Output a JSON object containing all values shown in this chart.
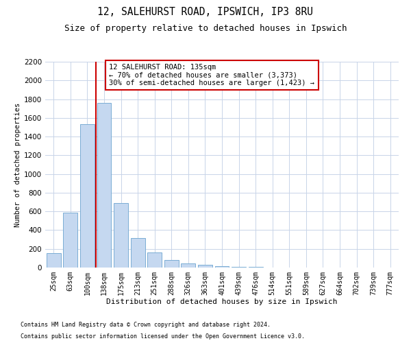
{
  "title1": "12, SALEHURST ROAD, IPSWICH, IP3 8RU",
  "title2": "Size of property relative to detached houses in Ipswich",
  "xlabel": "Distribution of detached houses by size in Ipswich",
  "ylabel": "Number of detached properties",
  "categories": [
    "25sqm",
    "63sqm",
    "100sqm",
    "138sqm",
    "175sqm",
    "213sqm",
    "251sqm",
    "288sqm",
    "326sqm",
    "363sqm",
    "401sqm",
    "439sqm",
    "476sqm",
    "514sqm",
    "551sqm",
    "589sqm",
    "627sqm",
    "664sqm",
    "702sqm",
    "739sqm",
    "777sqm"
  ],
  "values": [
    155,
    590,
    1530,
    1760,
    690,
    315,
    160,
    80,
    45,
    28,
    18,
    10,
    8,
    2,
    1,
    0,
    0,
    0,
    0,
    0,
    0
  ],
  "bar_color": "#c5d8f0",
  "bar_edge_color": "#7aadd4",
  "vline_color": "#cc0000",
  "annotation_text": "12 SALEHURST ROAD: 135sqm\n← 70% of detached houses are smaller (3,373)\n30% of semi-detached houses are larger (1,423) →",
  "annotation_box_color": "#ffffff",
  "annotation_box_edge": "#cc0000",
  "ylim_max": 2200,
  "yticks": [
    0,
    200,
    400,
    600,
    800,
    1000,
    1200,
    1400,
    1600,
    1800,
    2000,
    2200
  ],
  "footer1": "Contains HM Land Registry data © Crown copyright and database right 2024.",
  "footer2": "Contains public sector information licensed under the Open Government Licence v3.0.",
  "bg_color": "#ffffff",
  "grid_color": "#c8d4e8"
}
